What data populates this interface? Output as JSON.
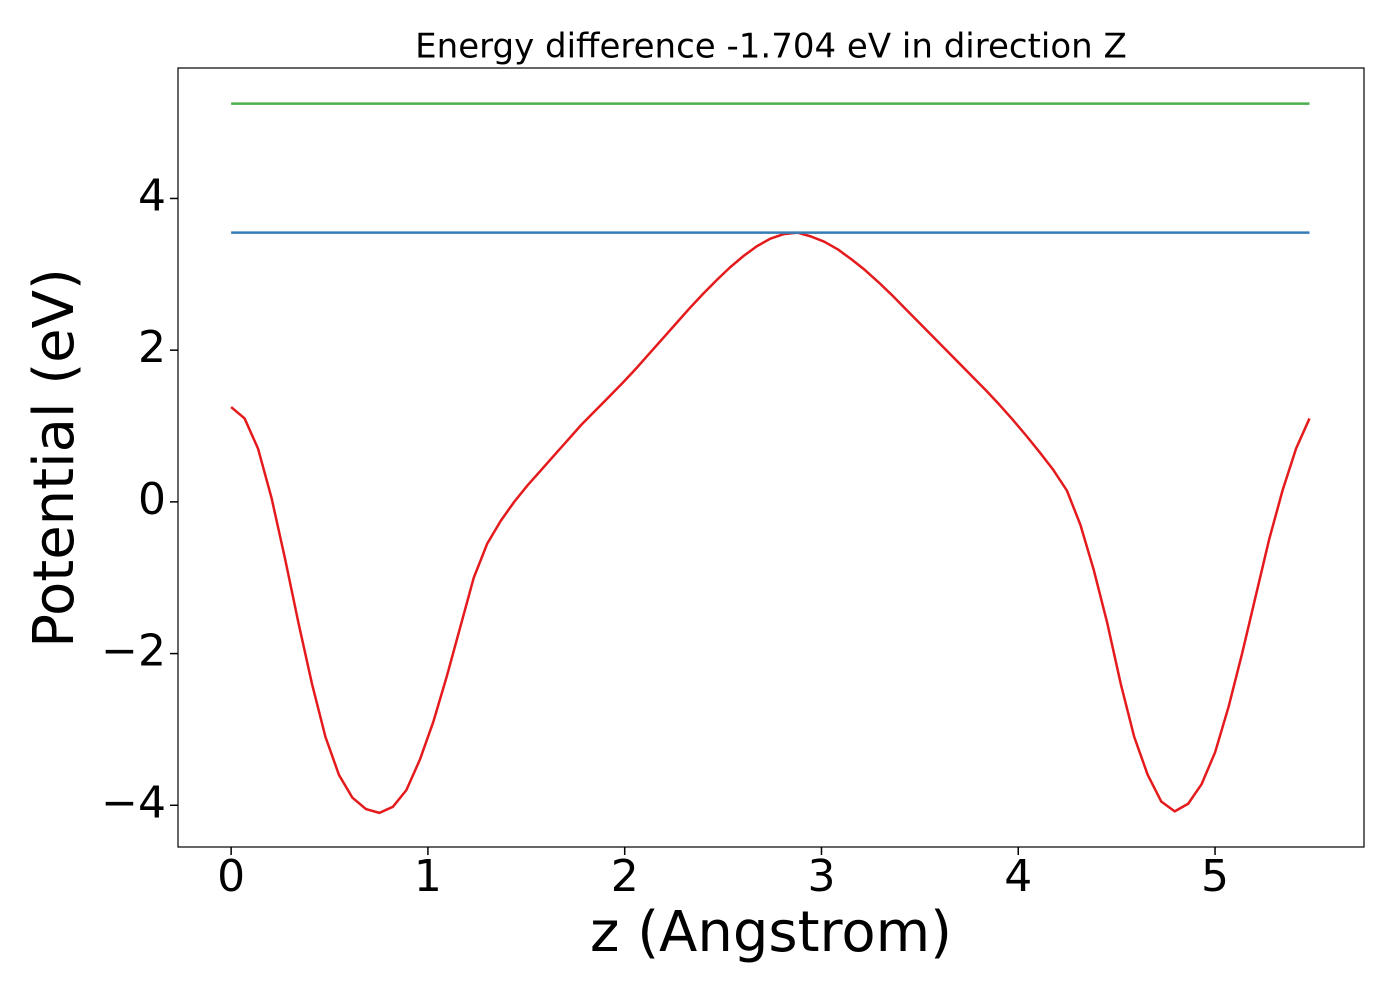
{
  "chart_data": {
    "type": "line",
    "title": "Energy difference -1.704 eV in direction Z",
    "x_label": "z (Angstrom)",
    "y_label": "Potential (eV)",
    "x": [
      0,
      0.0685,
      0.137,
      0.2055,
      0.274,
      0.3425,
      0.411,
      0.4795,
      0.548,
      0.6165,
      0.685,
      0.7535,
      0.822,
      0.8905,
      0.959,
      1.0275,
      1.096,
      1.1645,
      1.233,
      1.3015,
      1.37,
      1.4385,
      1.507,
      1.5755,
      1.644,
      1.7125,
      1.781,
      1.8495,
      1.918,
      1.9865,
      2.055,
      2.1235,
      2.192,
      2.2605,
      2.329,
      2.3975,
      2.466,
      2.5345,
      2.603,
      2.6715,
      2.74,
      2.8085,
      2.877,
      2.9455,
      3.014,
      3.0825,
      3.151,
      3.2195,
      3.288,
      3.3565,
      3.425,
      3.4935,
      3.562,
      3.6305,
      3.699,
      3.7675,
      3.836,
      3.9045,
      3.973,
      4.0415,
      4.11,
      4.1785,
      4.247,
      4.3155,
      4.384,
      4.4525,
      4.521,
      4.5895,
      4.658,
      4.7265,
      4.795,
      4.8635,
      4.932,
      5.0005,
      5.069,
      5.1375,
      5.206,
      5.2745,
      5.343,
      5.4115,
      5.48
    ],
    "series": [
      {
        "color": "#e41a1c",
        "values": [
          1.25,
          1.1,
          0.7,
          0.05,
          -0.75,
          -1.6,
          -2.4,
          -3.1,
          -3.6,
          -3.9,
          -4.05,
          -4.1,
          -4.02,
          -3.8,
          -3.4,
          -2.9,
          -2.3,
          -1.65,
          -1.0,
          -0.55,
          -0.25,
          0.0,
          0.22,
          0.42,
          0.62,
          0.82,
          1.02,
          1.2,
          1.38,
          1.56,
          1.75,
          1.95,
          2.15,
          2.35,
          2.55,
          2.74,
          2.92,
          3.09,
          3.24,
          3.37,
          3.47,
          3.53,
          3.55,
          3.5,
          3.43,
          3.33,
          3.2,
          3.06,
          2.9,
          2.73,
          2.55,
          2.37,
          2.19,
          2.01,
          1.83,
          1.65,
          1.47,
          1.28,
          1.08,
          0.87,
          0.65,
          0.42,
          0.15,
          -0.3,
          -0.9,
          -1.6,
          -2.4,
          -3.1,
          -3.6,
          -3.95,
          -4.08,
          -3.98,
          -3.72,
          -3.3,
          -2.7,
          -2.0,
          -1.25,
          -0.5,
          0.15,
          0.7,
          1.1
        ]
      },
      {
        "color": "#377eb8",
        "x": [
          0,
          5.48
        ],
        "values": [
          3.55,
          3.55
        ]
      },
      {
        "color": "#4daf4a",
        "x": [
          0,
          5.48
        ],
        "values": [
          5.25,
          5.25
        ]
      }
    ],
    "xlim": [
      -0.27,
      5.757
    ],
    "ylim": [
      -4.55,
      5.72
    ],
    "xticks": [
      0,
      1,
      2,
      3,
      4,
      5
    ],
    "yticks": [
      {
        "value": -4,
        "label": "−4"
      },
      {
        "value": -2,
        "label": "−2"
      },
      0,
      2,
      4
    ],
    "grid": false
  }
}
